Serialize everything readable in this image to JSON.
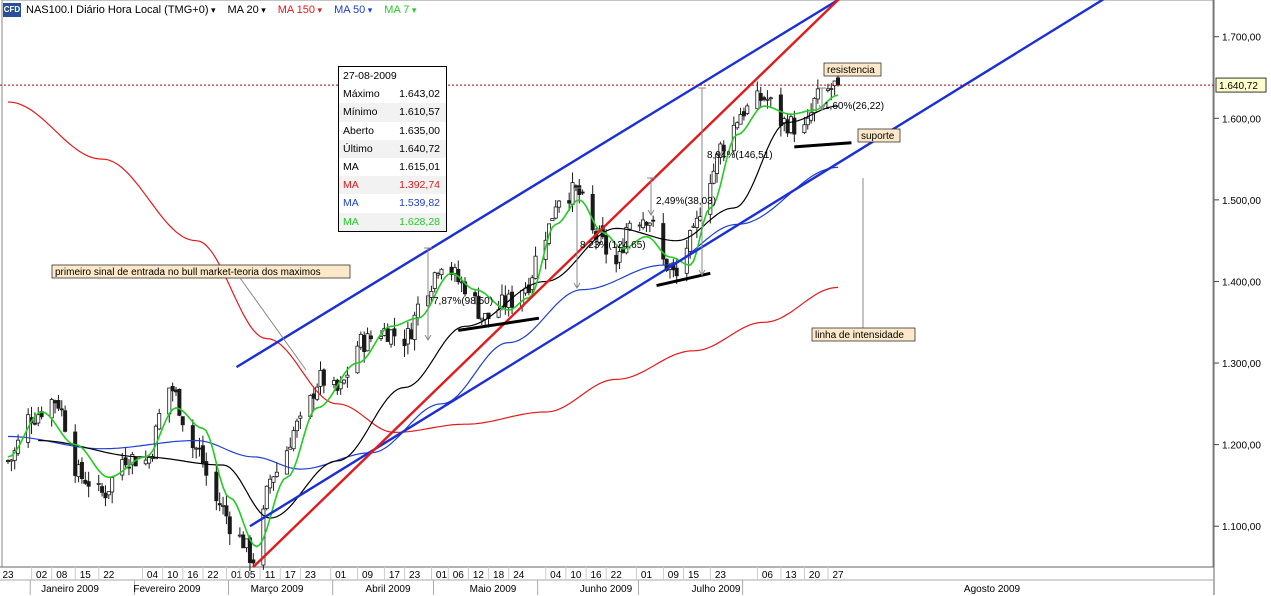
{
  "header": {
    "logo": "CFD",
    "instrument": "NAS100.I Diário Hora Local (TMG+0)",
    "ma_labels": [
      {
        "text": "MA 20",
        "color": "#000000"
      },
      {
        "text": "MA 150",
        "color": "#e31a1c"
      },
      {
        "text": "MA 50",
        "color": "#1f3fd0"
      },
      {
        "text": "MA 7",
        "color": "#22cc22"
      }
    ]
  },
  "info_box": {
    "date": "27-08-2009",
    "rows": [
      {
        "label": "Máximo",
        "value": "1.643,02",
        "color": "#000000"
      },
      {
        "label": "Mínimo",
        "value": "1.610,57",
        "color": "#000000"
      },
      {
        "label": "Aberto",
        "value": "1.635,00",
        "color": "#000000"
      },
      {
        "label": "Último",
        "value": "1.640,72",
        "color": "#000000"
      },
      {
        "label": "MA",
        "value": "1.615,01",
        "color": "#000000"
      },
      {
        "label": "MA",
        "value": "1.392,74",
        "color": "#e31a1c"
      },
      {
        "label": "MA",
        "value": "1.539,82",
        "color": "#1f3fd0"
      },
      {
        "label": "MA",
        "value": "1.628,28",
        "color": "#22cc22"
      }
    ]
  },
  "annotations": {
    "entry_signal": "primeiro sinal de entrada no bull market-teoria dos maximos",
    "resistance": "resistencia",
    "support": "suporte",
    "intensity": "linha de intensidade",
    "pct1": "7,87%(98,50)",
    "pct2": "8,23%(124,65)",
    "pct3": "2,49%(38,03)",
    "pct4": "8,94%(146,51)",
    "pct5": "1,60%(26,22)"
  },
  "chart_data": {
    "type": "candlestick",
    "y_axis": {
      "ticks": [
        "1.100,00",
        "1.200,00",
        "1.300,00",
        "1.400,00",
        "1.500,00",
        "1.600,00",
        "1.700,00"
      ],
      "tick_values": [
        1100,
        1200,
        1300,
        1400,
        1500,
        1600,
        1700
      ],
      "range": [
        1050,
        1745
      ],
      "last_price_label": "1.640,72",
      "last_price": 1640.72
    },
    "x_axis": {
      "day_labels": [
        "23",
        "02",
        "08",
        "15",
        "22",
        "04",
        "10",
        "16",
        "22",
        "01",
        "05",
        "11",
        "17",
        "23",
        "01",
        "09",
        "17",
        "23",
        "01",
        "06",
        "12",
        "18",
        "24",
        "04",
        "10",
        "16",
        "22",
        "01",
        "09",
        "15",
        "23",
        "06",
        "13",
        "20",
        "27"
      ],
      "months": [
        "Janeiro 2009",
        "Fevereiro 2009",
        "Março 2009",
        "Abril 2009",
        "Maio 2009",
        "Junho 2009",
        "Julho 2009",
        "Agosto 2009"
      ],
      "start_date": "2008-12-23",
      "last_date": "2009-08-27"
    },
    "price_waypoints": [
      [
        "2008-12-23",
        1180
      ],
      [
        "2008-12-30",
        1235
      ],
      [
        "2009-01-06",
        1255
      ],
      [
        "2009-01-14",
        1160
      ],
      [
        "2009-01-20",
        1140
      ],
      [
        "2009-01-27",
        1185
      ],
      [
        "2009-02-02",
        1180
      ],
      [
        "2009-02-09",
        1270
      ],
      [
        "2009-02-17",
        1195
      ],
      [
        "2009-02-23",
        1130
      ],
      [
        "2009-03-02",
        1085
      ],
      [
        "2009-03-06",
        1060
      ],
      [
        "2009-03-12",
        1165
      ],
      [
        "2009-03-20",
        1225
      ],
      [
        "2009-03-26",
        1280
      ],
      [
        "2009-03-31",
        1265
      ],
      [
        "2009-04-07",
        1325
      ],
      [
        "2009-04-14",
        1340
      ],
      [
        "2009-04-20",
        1330
      ],
      [
        "2009-04-27",
        1395
      ],
      [
        "2009-05-01",
        1425
      ],
      [
        "2009-05-08",
        1395
      ],
      [
        "2009-05-14",
        1355
      ],
      [
        "2009-05-21",
        1375
      ],
      [
        "2009-05-26",
        1395
      ],
      [
        "2009-06-01",
        1460
      ],
      [
        "2009-06-05",
        1505
      ],
      [
        "2009-06-10",
        1510
      ],
      [
        "2009-06-16",
        1455
      ],
      [
        "2009-06-22",
        1420
      ],
      [
        "2009-06-26",
        1475
      ],
      [
        "2009-07-01",
        1480
      ],
      [
        "2009-07-07",
        1420
      ],
      [
        "2009-07-10",
        1405
      ],
      [
        "2009-07-14",
        1450
      ],
      [
        "2009-07-20",
        1530
      ],
      [
        "2009-07-24",
        1570
      ],
      [
        "2009-07-30",
        1610
      ],
      [
        "2009-08-05",
        1625
      ],
      [
        "2009-08-11",
        1595
      ],
      [
        "2009-08-17",
        1585
      ],
      [
        "2009-08-21",
        1625
      ],
      [
        "2009-08-27",
        1640.72
      ]
    ],
    "ma_curves": {
      "ma20": [
        [
          "2009-01-01",
          1205
        ],
        [
          "2009-02-01",
          1185
        ],
        [
          "2009-02-25",
          1175
        ],
        [
          "2009-03-11",
          1110
        ],
        [
          "2009-03-31",
          1180
        ],
        [
          "2009-04-20",
          1270
        ],
        [
          "2009-05-08",
          1345
        ],
        [
          "2009-06-01",
          1400
        ],
        [
          "2009-06-22",
          1465
        ],
        [
          "2009-07-10",
          1450
        ],
        [
          "2009-07-27",
          1490
        ],
        [
          "2009-08-12",
          1595
        ],
        [
          "2009-08-27",
          1615
        ]
      ],
      "ma150": [
        [
          "2008-12-23",
          1620
        ],
        [
          "2009-01-20",
          1550
        ],
        [
          "2009-02-17",
          1450
        ],
        [
          "2009-03-10",
          1330
        ],
        [
          "2009-03-31",
          1250
        ],
        [
          "2009-04-17",
          1215
        ],
        [
          "2009-05-08",
          1225
        ],
        [
          "2009-06-01",
          1240
        ],
        [
          "2009-06-22",
          1280
        ],
        [
          "2009-07-15",
          1315
        ],
        [
          "2009-08-05",
          1350
        ],
        [
          "2009-08-27",
          1392.74
        ]
      ],
      "ma50": [
        [
          "2008-12-23",
          1210
        ],
        [
          "2009-01-20",
          1195
        ],
        [
          "2009-02-17",
          1205
        ],
        [
          "2009-03-06",
          1185
        ],
        [
          "2009-03-20",
          1170
        ],
        [
          "2009-04-10",
          1190
        ],
        [
          "2009-05-01",
          1250
        ],
        [
          "2009-05-21",
          1325
        ],
        [
          "2009-06-12",
          1390
        ],
        [
          "2009-07-06",
          1420
        ],
        [
          "2009-07-28",
          1470
        ],
        [
          "2009-08-27",
          1539.82
        ]
      ],
      "ma7": [
        [
          "2008-12-23",
          1185
        ],
        [
          "2009-01-02",
          1240
        ],
        [
          "2009-01-12",
          1200
        ],
        [
          "2009-01-22",
          1160
        ],
        [
          "2009-02-02",
          1185
        ],
        [
          "2009-02-11",
          1245
        ],
        [
          "2009-02-19",
          1220
        ],
        [
          "2009-02-27",
          1135
        ],
        [
          "2009-03-07",
          1075
        ],
        [
          "2009-03-16",
          1160
        ],
        [
          "2009-03-25",
          1245
        ],
        [
          "2009-04-06",
          1300
        ],
        [
          "2009-04-16",
          1345
        ],
        [
          "2009-04-24",
          1355
        ],
        [
          "2009-05-04",
          1410
        ],
        [
          "2009-05-11",
          1390
        ],
        [
          "2009-05-21",
          1365
        ],
        [
          "2009-05-27",
          1380
        ],
        [
          "2009-06-04",
          1470
        ],
        [
          "2009-06-11",
          1500
        ],
        [
          "2009-06-18",
          1460
        ],
        [
          "2009-06-24",
          1440
        ],
        [
          "2009-07-01",
          1455
        ],
        [
          "2009-07-08",
          1430
        ],
        [
          "2009-07-14",
          1420
        ],
        [
          "2009-07-20",
          1490
        ],
        [
          "2009-07-28",
          1580
        ],
        [
          "2009-08-05",
          1615
        ],
        [
          "2009-08-13",
          1605
        ],
        [
          "2009-08-20",
          1610
        ],
        [
          "2009-08-27",
          1628.28
        ]
      ]
    },
    "trendlines": {
      "channel_upper": [
        [
          "2009-03-01",
          1295
        ],
        [
          "2009-08-27",
          1745
        ]
      ],
      "channel_lower": [
        [
          "2009-03-05",
          1100
        ],
        [
          "2009-08-27",
          1545
        ]
      ],
      "intensity": [
        [
          "2009-03-06",
          1050
        ],
        [
          "2009-08-27",
          1745
        ]
      ],
      "support_1": [
        [
          "2009-05-06",
          1340
        ],
        [
          "2009-05-30",
          1355
        ]
      ],
      "support_2": [
        [
          "2009-07-04",
          1395
        ],
        [
          "2009-07-20",
          1410
        ]
      ],
      "support_3": [
        [
          "2009-08-14",
          1565
        ],
        [
          "2009-08-31",
          1570
        ]
      ]
    },
    "last_price_line": 1640.72,
    "colors": {
      "up": "#1a1a1a",
      "down": "#1a1a1a",
      "ma20": "#000000",
      "ma150": "#e31a1c",
      "ma50": "#1f3fd0",
      "ma7": "#22cc22",
      "channel": "#1a2fd6",
      "intensity": "#e31a1c"
    }
  }
}
